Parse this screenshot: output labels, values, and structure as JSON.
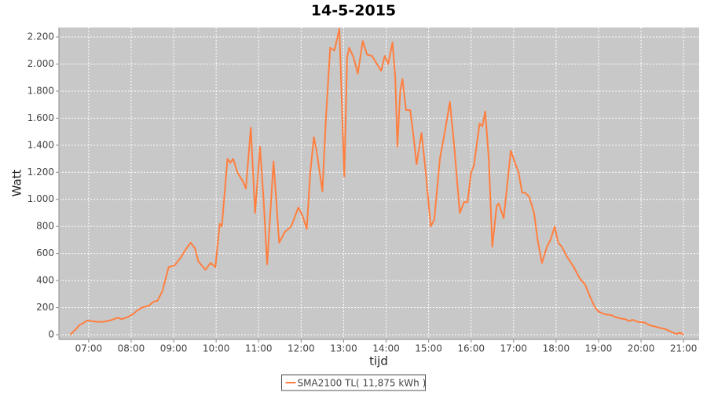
{
  "chart_data": {
    "type": "line",
    "title": "14-5-2015",
    "xlabel": "tijd",
    "ylabel": "Watt",
    "xlim": [
      "06:18",
      "21:22"
    ],
    "xticks": [
      "07:00",
      "08:00",
      "09:00",
      "10:00",
      "11:00",
      "12:00",
      "13:00",
      "14:00",
      "15:00",
      "16:00",
      "17:00",
      "18:00",
      "19:00",
      "20:00",
      "21:00"
    ],
    "ylim": [
      -35,
      2270
    ],
    "yticks": [
      0,
      200,
      400,
      600,
      800,
      {
        "value": 1000,
        "label": "1.000"
      },
      {
        "value": 1200,
        "label": "1.200"
      },
      {
        "value": 1400,
        "label": "1.400"
      },
      {
        "value": 1600,
        "label": "1.600"
      },
      {
        "value": 1800,
        "label": "1.800"
      },
      {
        "value": 2000,
        "label": "2.000"
      },
      {
        "value": 2200,
        "label": "2.200"
      }
    ],
    "grid": true,
    "legend": "bottom",
    "x": [
      "06:34",
      "06:40",
      "06:47",
      "06:52",
      "06:58",
      "07:05",
      "07:12",
      "07:20",
      "07:30",
      "07:41",
      "07:47",
      "07:55",
      "08:02",
      "08:09",
      "08:15",
      "08:25",
      "08:32",
      "08:37",
      "08:44",
      "08:53",
      "09:01",
      "09:10",
      "09:17",
      "09:24",
      "09:30",
      "09:35",
      "09:45",
      "09:52",
      "09:59",
      "10:05",
      "10:08",
      "10:16",
      "10:20",
      "10:24",
      "10:30",
      "10:38",
      "10:42",
      "10:49",
      "10:55",
      "11:02",
      "11:07",
      "11:12",
      "11:21",
      "11:29",
      "11:37",
      "11:46",
      "11:56",
      "12:02",
      "12:08",
      "12:13",
      "12:18",
      "12:22",
      "12:30",
      "12:35",
      "12:41",
      "12:47",
      "12:54",
      "13:01",
      "13:05",
      "13:08",
      "13:14",
      "13:20",
      "13:27",
      "13:33",
      "13:40",
      "13:47",
      "13:53",
      "13:58",
      "14:03",
      "14:09",
      "14:13",
      "14:16",
      "14:20",
      "14:23",
      "14:28",
      "14:34",
      "14:39",
      "14:43",
      "14:50",
      "14:56",
      "15:03",
      "15:08",
      "15:16",
      "15:23",
      "15:30",
      "15:36",
      "15:44",
      "15:50",
      "15:55",
      "16:00",
      "16:04",
      "16:12",
      "16:16",
      "16:20",
      "16:25",
      "16:30",
      "16:36",
      "16:39",
      "16:46",
      "16:56",
      "17:02",
      "17:07",
      "17:12",
      "17:16",
      "17:22",
      "17:29",
      "17:34",
      "17:40",
      "17:47",
      "17:52",
      "17:58",
      "18:03",
      "18:08",
      "18:15",
      "18:20",
      "18:25",
      "18:33",
      "18:41",
      "18:48",
      "18:55",
      "19:00",
      "19:09",
      "19:18",
      "19:24",
      "19:31",
      "19:38",
      "19:43",
      "19:48",
      "19:55",
      "20:05",
      "20:12",
      "20:20",
      "20:27",
      "20:35",
      "20:43",
      "20:50",
      "20:55",
      "21:00"
    ],
    "series": [
      {
        "name": "SMA2100 TL( 11,875 kWh )",
        "color": "#ff7f3f",
        "values": [
          0,
          30,
          70,
          85,
          105,
          100,
          95,
          95,
          105,
          125,
          115,
          130,
          150,
          180,
          200,
          215,
          245,
          250,
          320,
          500,
          510,
          570,
          630,
          680,
          640,
          540,
          480,
          530,
          500,
          820,
          800,
          1300,
          1270,
          1300,
          1200,
          1130,
          1080,
          1530,
          900,
          1390,
          1000,
          520,
          1280,
          680,
          760,
          800,
          940,
          880,
          780,
          1200,
          1460,
          1350,
          1060,
          1600,
          2120,
          2100,
          2260,
          1170,
          2050,
          2120,
          2050,
          1930,
          2170,
          2070,
          2060,
          2000,
          1950,
          2060,
          2000,
          2160,
          1900,
          1390,
          1800,
          1890,
          1660,
          1660,
          1450,
          1260,
          1490,
          1200,
          800,
          850,
          1300,
          1500,
          1720,
          1400,
          900,
          980,
          980,
          1200,
          1250,
          1560,
          1540,
          1650,
          1300,
          650,
          950,
          970,
          860,
          1360,
          1270,
          1200,
          1050,
          1050,
          1020,
          900,
          700,
          530,
          650,
          700,
          800,
          680,
          650,
          580,
          540,
          500,
          420,
          370,
          280,
          200,
          170,
          150,
          145,
          130,
          120,
          115,
          100,
          110,
          95,
          90,
          70,
          60,
          50,
          40,
          20,
          5,
          15,
          0
        ]
      }
    ]
  }
}
